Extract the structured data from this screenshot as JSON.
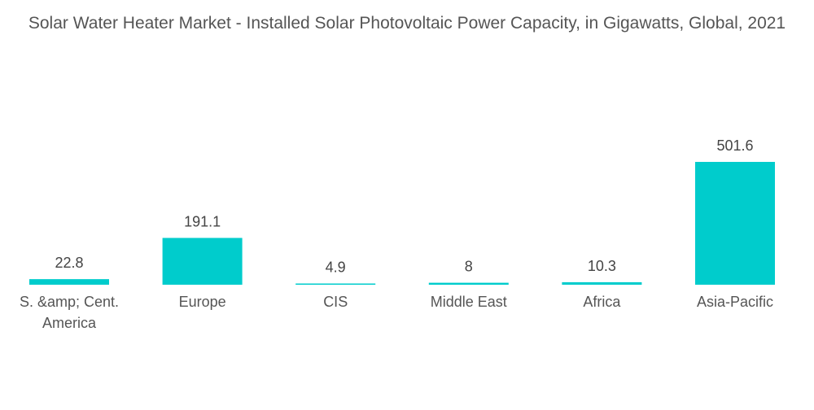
{
  "chart_data": {
    "type": "bar",
    "title": "Solar Water Heater Market - Installed Solar Photovoltaic Power Capacity, in Gigawatts, Global, 2021",
    "categories": [
      "S. &amp; Cent. America",
      "Europe",
      "CIS",
      "Middle East",
      "Africa",
      "Asia-Pacific"
    ],
    "category_lines": [
      [
        "S. &amp; Cent.",
        "America"
      ],
      [
        "Europe"
      ],
      [
        "CIS"
      ],
      [
        "Middle East"
      ],
      [
        "Africa"
      ],
      [
        "Asia-Pacific"
      ]
    ],
    "values": [
      22.8,
      191.1,
      4.9,
      8,
      10.3,
      501.6
    ],
    "value_labels": [
      "22.8",
      "191.1",
      "4.9",
      "8",
      "10.3",
      "501.6"
    ],
    "xlabel": "",
    "ylabel": "",
    "ylim": [
      0,
      501.6
    ],
    "grid": false,
    "bar_color": "#00CCCC"
  }
}
